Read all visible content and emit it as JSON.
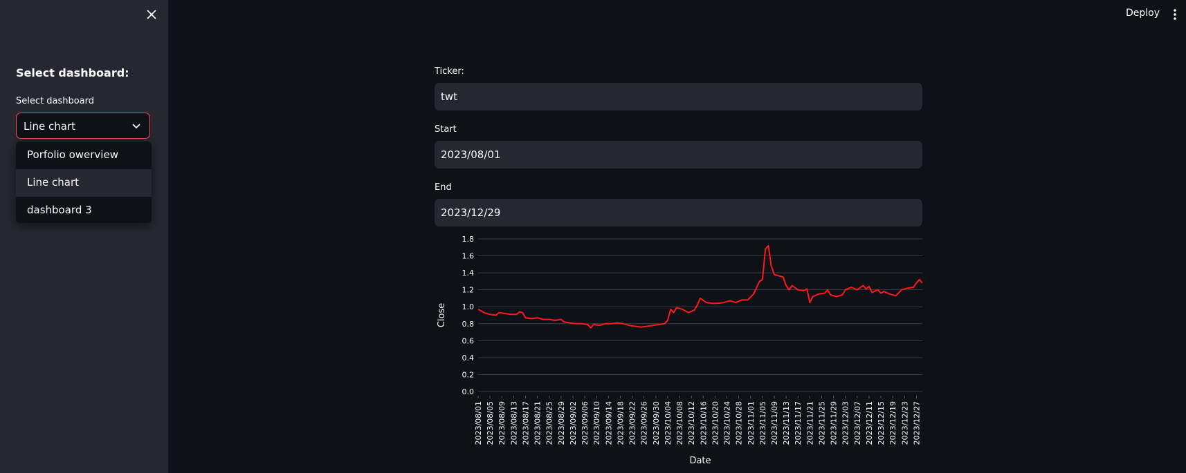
{
  "sidebar": {
    "heading": "Select dashboard:",
    "select_label": "Select dashboard",
    "selected": "Line chart",
    "options": [
      "Porfolio owerview",
      "Line chart",
      "dashboard 3"
    ]
  },
  "header": {
    "deploy_label": "Deploy"
  },
  "form": {
    "ticker_label": "Ticker:",
    "ticker_value": "twt",
    "start_label": "Start",
    "start_value": "2023/08/01",
    "end_label": "End",
    "end_value": "2023/12/29"
  },
  "colors": {
    "accent": "#ff4b4b",
    "line": "#ff1a1a",
    "background": "#0e1117",
    "sidebar": "#262730"
  },
  "chart_data": {
    "type": "line",
    "xlabel": "Date",
    "ylabel": "Close",
    "ylim": [
      0.0,
      1.8
    ],
    "yticks": [
      0.0,
      0.2,
      0.4,
      0.6,
      0.8,
      1.0,
      1.2,
      1.4,
      1.6,
      1.8
    ],
    "grid": true,
    "xticks": [
      "2023/08/01",
      "2023/08/05",
      "2023/08/09",
      "2023/08/13",
      "2023/08/17",
      "2023/08/21",
      "2023/08/25",
      "2023/08/29",
      "2023/09/02",
      "2023/09/06",
      "2023/09/10",
      "2023/09/14",
      "2023/09/18",
      "2023/09/22",
      "2023/09/26",
      "2023/09/30",
      "2023/10/04",
      "2023/10/08",
      "2023/10/12",
      "2023/10/16",
      "2023/10/20",
      "2023/10/24",
      "2023/10/28",
      "2023/11/01",
      "2023/11/05",
      "2023/11/09",
      "2023/11/13",
      "2023/11/17",
      "2023/11/21",
      "2023/11/25",
      "2023/11/29",
      "2023/12/03",
      "2023/12/07",
      "2023/12/11",
      "2023/12/15",
      "2023/12/19",
      "2023/12/23",
      "2023/12/27"
    ],
    "series": [
      {
        "points": [
          [
            "2023/08/01",
            0.97
          ],
          [
            "2023/08/03",
            0.93
          ],
          [
            "2023/08/05",
            0.91
          ],
          [
            "2023/08/07",
            0.9
          ],
          [
            "2023/08/08",
            0.93
          ],
          [
            "2023/08/10",
            0.92
          ],
          [
            "2023/08/12",
            0.91
          ],
          [
            "2023/08/14",
            0.91
          ],
          [
            "2023/08/15",
            0.94
          ],
          [
            "2023/08/16",
            0.93
          ],
          [
            "2023/08/17",
            0.87
          ],
          [
            "2023/08/19",
            0.86
          ],
          [
            "2023/08/21",
            0.87
          ],
          [
            "2023/08/23",
            0.85
          ],
          [
            "2023/08/25",
            0.85
          ],
          [
            "2023/08/27",
            0.84
          ],
          [
            "2023/08/29",
            0.85
          ],
          [
            "2023/08/30",
            0.82
          ],
          [
            "2023/09/01",
            0.81
          ],
          [
            "2023/09/03",
            0.8
          ],
          [
            "2023/09/05",
            0.8
          ],
          [
            "2023/09/07",
            0.79
          ],
          [
            "2023/09/08",
            0.75
          ],
          [
            "2023/09/09",
            0.79
          ],
          [
            "2023/09/11",
            0.78
          ],
          [
            "2023/09/13",
            0.8
          ],
          [
            "2023/09/15",
            0.8
          ],
          [
            "2023/09/17",
            0.81
          ],
          [
            "2023/09/19",
            0.8
          ],
          [
            "2023/09/21",
            0.78
          ],
          [
            "2023/09/23",
            0.77
          ],
          [
            "2023/09/25",
            0.76
          ],
          [
            "2023/09/27",
            0.77
          ],
          [
            "2023/09/29",
            0.78
          ],
          [
            "2023/10/01",
            0.79
          ],
          [
            "2023/10/03",
            0.8
          ],
          [
            "2023/10/04",
            0.84
          ],
          [
            "2023/10/05",
            0.97
          ],
          [
            "2023/10/06",
            0.93
          ],
          [
            "2023/10/07",
            0.99
          ],
          [
            "2023/10/09",
            0.97
          ],
          [
            "2023/10/11",
            0.93
          ],
          [
            "2023/10/13",
            0.96
          ],
          [
            "2023/10/14",
            1.02
          ],
          [
            "2023/10/15",
            1.1
          ],
          [
            "2023/10/17",
            1.05
          ],
          [
            "2023/10/19",
            1.04
          ],
          [
            "2023/10/21",
            1.04
          ],
          [
            "2023/10/23",
            1.05
          ],
          [
            "2023/10/25",
            1.07
          ],
          [
            "2023/10/27",
            1.05
          ],
          [
            "2023/10/29",
            1.08
          ],
          [
            "2023/10/31",
            1.08
          ],
          [
            "2023/11/02",
            1.15
          ],
          [
            "2023/11/04",
            1.3
          ],
          [
            "2023/11/05",
            1.32
          ],
          [
            "2023/11/06",
            1.68
          ],
          [
            "2023/11/07",
            1.72
          ],
          [
            "2023/11/08",
            1.48
          ],
          [
            "2023/11/09",
            1.38
          ],
          [
            "2023/11/11",
            1.36
          ],
          [
            "2023/11/12",
            1.35
          ],
          [
            "2023/11/13",
            1.25
          ],
          [
            "2023/11/14",
            1.2
          ],
          [
            "2023/11/15",
            1.25
          ],
          [
            "2023/11/17",
            1.2
          ],
          [
            "2023/11/19",
            1.19
          ],
          [
            "2023/11/20",
            1.21
          ],
          [
            "2023/11/21",
            1.05
          ],
          [
            "2023/11/22",
            1.12
          ],
          [
            "2023/11/24",
            1.15
          ],
          [
            "2023/11/26",
            1.16
          ],
          [
            "2023/11/27",
            1.2
          ],
          [
            "2023/11/28",
            1.14
          ],
          [
            "2023/11/30",
            1.12
          ],
          [
            "2023/12/02",
            1.14
          ],
          [
            "2023/12/03",
            1.2
          ],
          [
            "2023/12/05",
            1.23
          ],
          [
            "2023/12/07",
            1.2
          ],
          [
            "2023/12/09",
            1.25
          ],
          [
            "2023/12/10",
            1.21
          ],
          [
            "2023/12/11",
            1.24
          ],
          [
            "2023/12/12",
            1.17
          ],
          [
            "2023/12/14",
            1.2
          ],
          [
            "2023/12/15",
            1.16
          ],
          [
            "2023/12/16",
            1.18
          ],
          [
            "2023/12/18",
            1.15
          ],
          [
            "2023/12/20",
            1.13
          ],
          [
            "2023/12/22",
            1.2
          ],
          [
            "2023/12/24",
            1.22
          ],
          [
            "2023/12/26",
            1.23
          ],
          [
            "2023/12/27",
            1.28
          ],
          [
            "2023/12/28",
            1.32
          ],
          [
            "2023/12/29",
            1.28
          ]
        ]
      }
    ]
  }
}
